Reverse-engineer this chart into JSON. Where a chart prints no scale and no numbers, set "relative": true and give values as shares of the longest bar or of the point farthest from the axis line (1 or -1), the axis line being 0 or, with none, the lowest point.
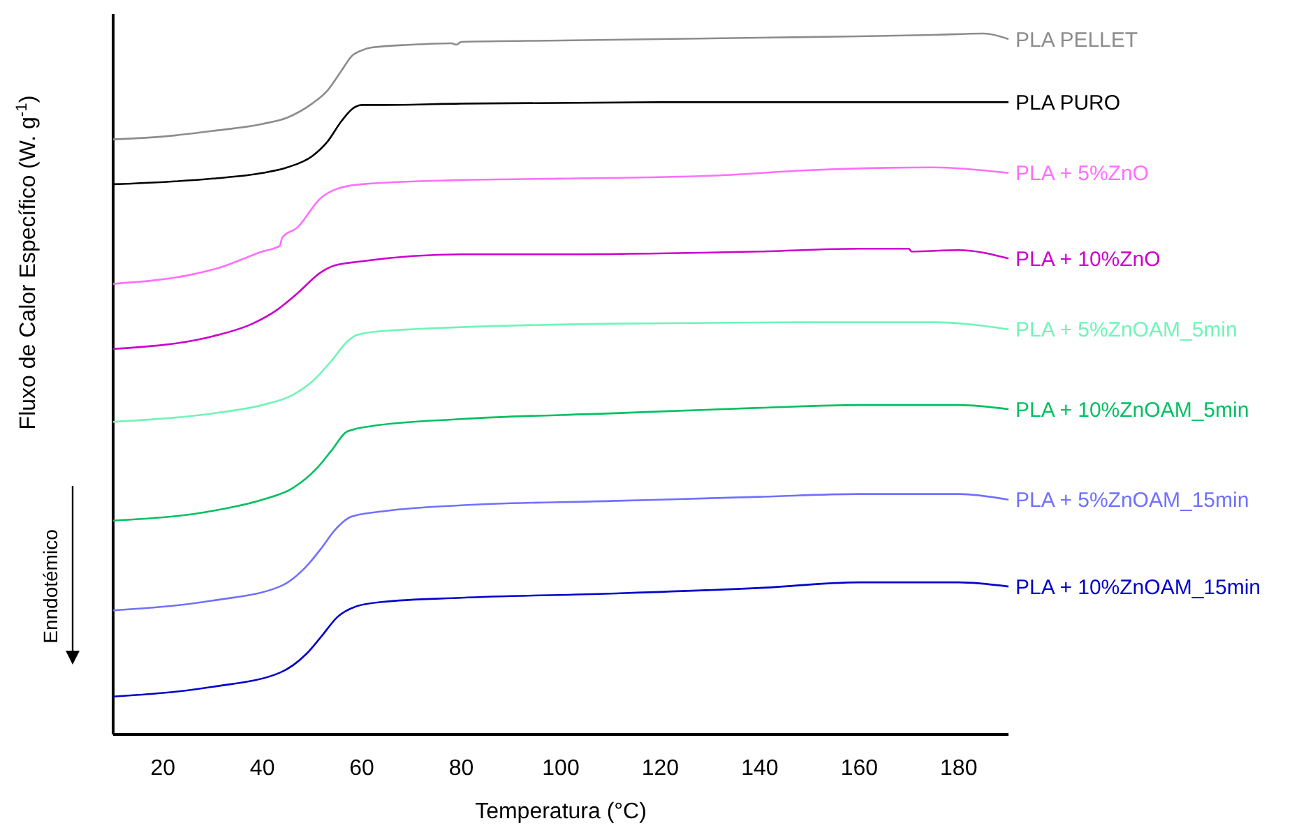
{
  "chart_data": {
    "type": "line",
    "relative": true,
    "xlabel": "Temperatura (°C)",
    "ylabel": "Fluxo de Calor Específico (W. g$^{-1}$)",
    "xlim": [
      10,
      190
    ],
    "xticks": [
      20,
      40,
      60,
      80,
      100,
      120,
      140,
      160,
      180
    ],
    "grid": false,
    "legend": false,
    "marker": "none",
    "line_style": "solid",
    "annotations": [
      "Enndotémico"
    ],
    "series": [
      {
        "name": "PLA PELLET",
        "color": "#8c8c8c",
        "x": [
          10,
          20,
          30,
          40,
          45,
          50,
          53,
          56,
          58,
          60,
          62,
          70,
          78,
          79,
          80,
          100,
          120,
          140,
          160,
          175,
          185,
          190
        ],
        "values": [
          0.849,
          0.853,
          0.861,
          0.871,
          0.88,
          0.9,
          0.918,
          0.948,
          0.968,
          0.976,
          0.98,
          0.984,
          0.986,
          0.984,
          0.988,
          0.99,
          0.992,
          0.994,
          0.996,
          0.998,
          1.0,
          0.992
        ]
      },
      {
        "name": "PLA PURO",
        "color": "#000000",
        "x": [
          10,
          30,
          40,
          45,
          50,
          53,
          56,
          58,
          60,
          65,
          80,
          120,
          160,
          190
        ],
        "values": [
          0.785,
          0.793,
          0.801,
          0.809,
          0.825,
          0.845,
          0.876,
          0.892,
          0.898,
          0.898,
          0.9,
          0.902,
          0.902,
          0.902
        ]
      },
      {
        "name": "PLA + 5%ZnO",
        "color": "#ff6eff",
        "x": [
          10,
          25,
          31,
          40,
          43.5,
          44,
          47,
          51.7,
          54.5,
          60,
          80,
          100,
          130,
          150,
          175,
          190
        ],
        "values": [
          0.643,
          0.655,
          0.665,
          0.689,
          0.697,
          0.709,
          0.723,
          0.765,
          0.777,
          0.785,
          0.791,
          0.793,
          0.797,
          0.805,
          0.809,
          0.801
        ]
      },
      {
        "name": "PLA + 10%ZnO",
        "color": "#cc00cc",
        "x": [
          10,
          30,
          38,
          43,
          47,
          51.7,
          54.5,
          60,
          80,
          100,
          140,
          160,
          170,
          170.5,
          180,
          190
        ],
        "values": [
          0.55,
          0.568,
          0.586,
          0.606,
          0.629,
          0.659,
          0.669,
          0.675,
          0.685,
          0.685,
          0.689,
          0.693,
          0.693,
          0.689,
          0.691,
          0.679
        ]
      },
      {
        "name": "PLA + 5%ZnOAM_5min",
        "color": "#6ff5b8",
        "x": [
          10,
          30,
          40,
          46,
          50.4,
          54,
          57,
          59,
          65,
          110,
          150,
          175,
          190
        ],
        "values": [
          0.446,
          0.458,
          0.47,
          0.484,
          0.506,
          0.534,
          0.56,
          0.57,
          0.576,
          0.586,
          0.588,
          0.588,
          0.578
        ]
      },
      {
        "name": "PLA + 10%ZnOAM_5min",
        "color": "#00c060",
        "x": [
          10,
          30,
          40,
          46,
          51,
          54,
          57,
          62,
          80,
          110,
          140,
          160,
          180,
          190
        ],
        "values": [
          0.305,
          0.319,
          0.335,
          0.351,
          0.38,
          0.406,
          0.432,
          0.44,
          0.45,
          0.458,
          0.466,
          0.47,
          0.47,
          0.464
        ]
      },
      {
        "name": "PLA + 5%ZnOAM_15min",
        "color": "#7070ff",
        "x": [
          10,
          30,
          43.5,
          49,
          52,
          54.5,
          58,
          65,
          80,
          110,
          140,
          160,
          180,
          190
        ],
        "values": [
          0.177,
          0.191,
          0.211,
          0.241,
          0.267,
          0.291,
          0.311,
          0.319,
          0.327,
          0.333,
          0.339,
          0.343,
          0.343,
          0.335
        ]
      },
      {
        "name": "PLA + 10%ZnOAM_15min",
        "color": "#0000cc",
        "x": [
          10,
          30,
          43.5,
          49,
          52,
          55,
          59,
          64,
          80,
          110,
          140,
          160,
          180,
          190
        ],
        "values": [
          0.054,
          0.068,
          0.088,
          0.116,
          0.141,
          0.167,
          0.183,
          0.189,
          0.195,
          0.201,
          0.209,
          0.217,
          0.217,
          0.211
        ]
      }
    ]
  }
}
